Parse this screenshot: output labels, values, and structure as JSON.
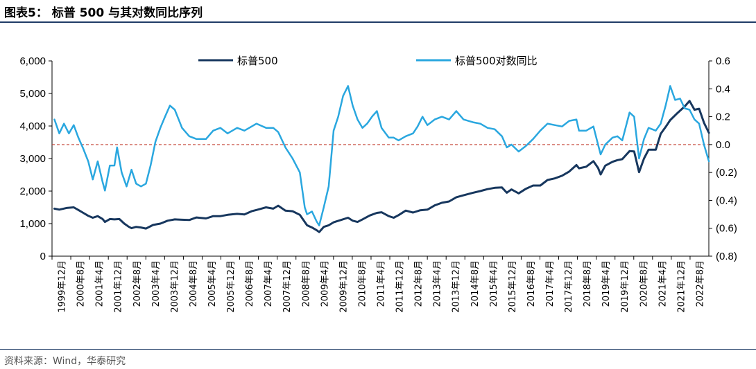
{
  "header": {
    "title": "图表5：  标普 500 与其对数同比序列"
  },
  "footer": {
    "source": "资料来源：Wind，华泰研究"
  },
  "chart_data": {
    "type": "line",
    "title": "标普 500 与其对数同比序列",
    "legend": {
      "placement": "top-center",
      "entries": [
        "标普500",
        "标普500对数同比"
      ]
    },
    "y_left": {
      "ylim": [
        0,
        6000
      ],
      "ticks": [
        "0",
        "1,000",
        "2,000",
        "3,000",
        "4,000",
        "5,000",
        "6,000"
      ]
    },
    "y_right": {
      "ylim": [
        -0.8,
        0.6
      ],
      "ticks": [
        "(0.8)",
        "(0.6)",
        "(0.4)",
        "(0.2)",
        "0.0",
        "0.2",
        "0.4",
        "0.6"
      ]
    },
    "x_range": [
      1999.917,
      2022.667
    ],
    "x_tick_labels": [
      "1999年12月",
      "2000年8月",
      "2001年4月",
      "2001年12月",
      "2002年8月",
      "2003年4月",
      "2003年12月",
      "2004年8月",
      "2005年4月",
      "2005年12月",
      "2006年8月",
      "2007年4月",
      "2007年12月",
      "2008年8月",
      "2009年4月",
      "2009年12月",
      "2010年8月",
      "2011年4月",
      "2011年12月",
      "2012年8月",
      "2013年4月",
      "2013年12月",
      "2014年8月",
      "2015年4月",
      "2015年12月",
      "2016年8月",
      "2017年4月",
      "2017年12月",
      "2018年8月",
      "2019年4月",
      "2019年12月",
      "2020年8月",
      "2021年4月",
      "2021年12月",
      "2022年8月"
    ],
    "series": [
      {
        "name": "标普500",
        "axis": "left",
        "color": "#17375e",
        "points": [
          [
            2000.0,
            1460
          ],
          [
            2000.17,
            1430
          ],
          [
            2000.42,
            1480
          ],
          [
            2000.67,
            1500
          ],
          [
            2000.83,
            1420
          ],
          [
            2001.0,
            1330
          ],
          [
            2001.17,
            1240
          ],
          [
            2001.33,
            1180
          ],
          [
            2001.5,
            1230
          ],
          [
            2001.67,
            1140
          ],
          [
            2001.75,
            1050
          ],
          [
            2001.92,
            1140
          ],
          [
            2002.08,
            1130
          ],
          [
            2002.25,
            1140
          ],
          [
            2002.42,
            1000
          ],
          [
            2002.58,
            900
          ],
          [
            2002.67,
            860
          ],
          [
            2002.83,
            900
          ],
          [
            2003.0,
            880
          ],
          [
            2003.17,
            850
          ],
          [
            2003.42,
            960
          ],
          [
            2003.67,
            1000
          ],
          [
            2003.92,
            1090
          ],
          [
            2004.17,
            1130
          ],
          [
            2004.42,
            1120
          ],
          [
            2004.67,
            1110
          ],
          [
            2004.92,
            1190
          ],
          [
            2005.25,
            1160
          ],
          [
            2005.5,
            1230
          ],
          [
            2005.75,
            1230
          ],
          [
            2006.0,
            1270
          ],
          [
            2006.33,
            1300
          ],
          [
            2006.58,
            1280
          ],
          [
            2006.83,
            1380
          ],
          [
            2007.0,
            1420
          ],
          [
            2007.33,
            1500
          ],
          [
            2007.58,
            1460
          ],
          [
            2007.75,
            1550
          ],
          [
            2008.0,
            1400
          ],
          [
            2008.25,
            1380
          ],
          [
            2008.5,
            1270
          ],
          [
            2008.75,
            950
          ],
          [
            2008.92,
            880
          ],
          [
            2009.08,
            800
          ],
          [
            2009.17,
            740
          ],
          [
            2009.33,
            900
          ],
          [
            2009.5,
            950
          ],
          [
            2009.67,
            1040
          ],
          [
            2009.92,
            1110
          ],
          [
            2010.17,
            1180
          ],
          [
            2010.33,
            1090
          ],
          [
            2010.5,
            1050
          ],
          [
            2010.67,
            1130
          ],
          [
            2010.92,
            1250
          ],
          [
            2011.17,
            1330
          ],
          [
            2011.33,
            1350
          ],
          [
            2011.58,
            1230
          ],
          [
            2011.75,
            1180
          ],
          [
            2011.92,
            1260
          ],
          [
            2012.17,
            1400
          ],
          [
            2012.42,
            1340
          ],
          [
            2012.67,
            1410
          ],
          [
            2012.92,
            1430
          ],
          [
            2013.17,
            1560
          ],
          [
            2013.42,
            1640
          ],
          [
            2013.67,
            1680
          ],
          [
            2013.92,
            1810
          ],
          [
            2014.17,
            1870
          ],
          [
            2014.5,
            1950
          ],
          [
            2014.75,
            2000
          ],
          [
            2015.0,
            2060
          ],
          [
            2015.25,
            2100
          ],
          [
            2015.5,
            2110
          ],
          [
            2015.67,
            1950
          ],
          [
            2015.83,
            2050
          ],
          [
            2016.08,
            1930
          ],
          [
            2016.33,
            2070
          ],
          [
            2016.58,
            2170
          ],
          [
            2016.83,
            2170
          ],
          [
            2017.08,
            2340
          ],
          [
            2017.33,
            2390
          ],
          [
            2017.58,
            2470
          ],
          [
            2017.83,
            2600
          ],
          [
            2018.08,
            2800
          ],
          [
            2018.17,
            2700
          ],
          [
            2018.42,
            2750
          ],
          [
            2018.67,
            2920
          ],
          [
            2018.83,
            2710
          ],
          [
            2018.92,
            2510
          ],
          [
            2019.08,
            2780
          ],
          [
            2019.33,
            2900
          ],
          [
            2019.5,
            2950
          ],
          [
            2019.67,
            2980
          ],
          [
            2019.92,
            3230
          ],
          [
            2020.08,
            3220
          ],
          [
            2020.25,
            2580
          ],
          [
            2020.42,
            3000
          ],
          [
            2020.58,
            3270
          ],
          [
            2020.83,
            3270
          ],
          [
            2021.0,
            3760
          ],
          [
            2021.17,
            3970
          ],
          [
            2021.33,
            4180
          ],
          [
            2021.58,
            4400
          ],
          [
            2021.83,
            4600
          ],
          [
            2022.0,
            4770
          ],
          [
            2022.17,
            4500
          ],
          [
            2022.33,
            4530
          ],
          [
            2022.5,
            4100
          ],
          [
            2022.67,
            3790
          ]
        ]
      },
      {
        "name": "标普500对数同比",
        "axis": "right",
        "color": "#2aa7df",
        "points": [
          [
            2000.0,
            0.18
          ],
          [
            2000.17,
            0.08
          ],
          [
            2000.33,
            0.15
          ],
          [
            2000.5,
            0.08
          ],
          [
            2000.67,
            0.14
          ],
          [
            2000.83,
            0.05
          ],
          [
            2001.0,
            -0.03
          ],
          [
            2001.17,
            -0.12
          ],
          [
            2001.33,
            -0.25
          ],
          [
            2001.5,
            -0.12
          ],
          [
            2001.67,
            -0.27
          ],
          [
            2001.75,
            -0.33
          ],
          [
            2001.92,
            -0.15
          ],
          [
            2002.08,
            -0.15
          ],
          [
            2002.17,
            -0.02
          ],
          [
            2002.33,
            -0.2
          ],
          [
            2002.5,
            -0.3
          ],
          [
            2002.67,
            -0.18
          ],
          [
            2002.83,
            -0.28
          ],
          [
            2003.0,
            -0.3
          ],
          [
            2003.17,
            -0.28
          ],
          [
            2003.33,
            -0.15
          ],
          [
            2003.5,
            0.02
          ],
          [
            2003.67,
            0.12
          ],
          [
            2003.83,
            0.2
          ],
          [
            2004.0,
            0.28
          ],
          [
            2004.17,
            0.25
          ],
          [
            2004.42,
            0.12
          ],
          [
            2004.67,
            0.06
          ],
          [
            2004.92,
            0.04
          ],
          [
            2005.25,
            0.04
          ],
          [
            2005.5,
            0.1
          ],
          [
            2005.75,
            0.12
          ],
          [
            2006.0,
            0.08
          ],
          [
            2006.33,
            0.12
          ],
          [
            2006.58,
            0.1
          ],
          [
            2006.83,
            0.13
          ],
          [
            2007.0,
            0.15
          ],
          [
            2007.33,
            0.12
          ],
          [
            2007.58,
            0.12
          ],
          [
            2007.75,
            0.09
          ],
          [
            2008.0,
            -0.02
          ],
          [
            2008.25,
            -0.1
          ],
          [
            2008.5,
            -0.2
          ],
          [
            2008.67,
            -0.45
          ],
          [
            2008.75,
            -0.5
          ],
          [
            2008.92,
            -0.48
          ],
          [
            2009.08,
            -0.55
          ],
          [
            2009.17,
            -0.58
          ],
          [
            2009.33,
            -0.45
          ],
          [
            2009.5,
            -0.3
          ],
          [
            2009.67,
            0.1
          ],
          [
            2009.83,
            0.2
          ],
          [
            2010.0,
            0.35
          ],
          [
            2010.17,
            0.42
          ],
          [
            2010.33,
            0.28
          ],
          [
            2010.5,
            0.18
          ],
          [
            2010.67,
            0.12
          ],
          [
            2010.83,
            0.15
          ],
          [
            2011.0,
            0.2
          ],
          [
            2011.17,
            0.24
          ],
          [
            2011.33,
            0.12
          ],
          [
            2011.58,
            0.05
          ],
          [
            2011.75,
            0.05
          ],
          [
            2011.92,
            0.03
          ],
          [
            2012.17,
            0.06
          ],
          [
            2012.42,
            0.08
          ],
          [
            2012.58,
            0.13
          ],
          [
            2012.75,
            0.2
          ],
          [
            2012.92,
            0.14
          ],
          [
            2013.17,
            0.18
          ],
          [
            2013.42,
            0.2
          ],
          [
            2013.67,
            0.18
          ],
          [
            2013.92,
            0.24
          ],
          [
            2014.17,
            0.18
          ],
          [
            2014.5,
            0.16
          ],
          [
            2014.75,
            0.15
          ],
          [
            2015.0,
            0.12
          ],
          [
            2015.25,
            0.11
          ],
          [
            2015.5,
            0.06
          ],
          [
            2015.67,
            -0.02
          ],
          [
            2015.83,
            0.0
          ],
          [
            2016.08,
            -0.05
          ],
          [
            2016.33,
            -0.01
          ],
          [
            2016.58,
            0.04
          ],
          [
            2016.83,
            0.1
          ],
          [
            2017.08,
            0.15
          ],
          [
            2017.33,
            0.14
          ],
          [
            2017.58,
            0.13
          ],
          [
            2017.83,
            0.17
          ],
          [
            2018.08,
            0.18
          ],
          [
            2018.17,
            0.1
          ],
          [
            2018.42,
            0.1
          ],
          [
            2018.67,
            0.13
          ],
          [
            2018.83,
            0.0
          ],
          [
            2018.92,
            -0.07
          ],
          [
            2019.08,
            0.0
          ],
          [
            2019.33,
            0.05
          ],
          [
            2019.5,
            0.06
          ],
          [
            2019.67,
            0.03
          ],
          [
            2019.92,
            0.23
          ],
          [
            2020.08,
            0.2
          ],
          [
            2020.25,
            -0.1
          ],
          [
            2020.42,
            0.04
          ],
          [
            2020.58,
            0.12
          ],
          [
            2020.83,
            0.1
          ],
          [
            2021.0,
            0.15
          ],
          [
            2021.17,
            0.28
          ],
          [
            2021.33,
            0.42
          ],
          [
            2021.5,
            0.32
          ],
          [
            2021.67,
            0.33
          ],
          [
            2021.83,
            0.26
          ],
          [
            2022.0,
            0.25
          ],
          [
            2022.17,
            0.18
          ],
          [
            2022.33,
            0.15
          ],
          [
            2022.5,
            0.0
          ],
          [
            2022.67,
            -0.12
          ]
        ]
      }
    ]
  }
}
